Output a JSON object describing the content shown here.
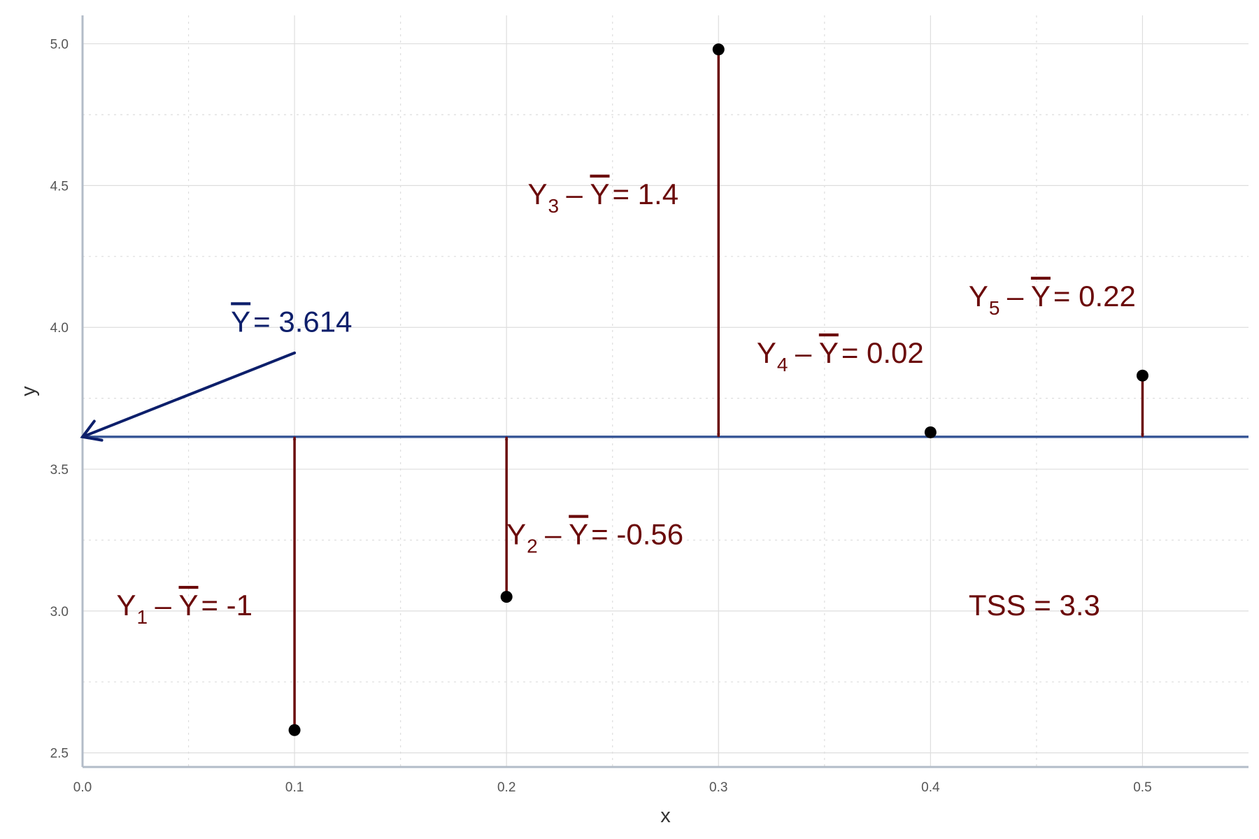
{
  "chart_data": {
    "type": "scatter",
    "title": "",
    "xlabel": "x",
    "ylabel": "y",
    "xlim": [
      0,
      0.55
    ],
    "ylim": [
      2.45,
      5.1
    ],
    "x_ticks": [
      "0.0",
      "0.1",
      "0.2",
      "0.3",
      "0.4",
      "0.5"
    ],
    "y_ticks": [
      "2.5",
      "3.0",
      "3.5",
      "4.0",
      "4.5",
      "5.0"
    ],
    "grid": true,
    "points": [
      {
        "x": 0.1,
        "y": 2.58
      },
      {
        "x": 0.2,
        "y": 3.05
      },
      {
        "x": 0.3,
        "y": 4.98
      },
      {
        "x": 0.4,
        "y": 3.63
      },
      {
        "x": 0.5,
        "y": 3.83
      }
    ],
    "mean_line": {
      "y": 3.614,
      "color": "#3b5998"
    },
    "mean_label": {
      "text": "= 3.614",
      "letter": "Y",
      "color": "#0d1f6b",
      "x": 0.07,
      "y": 3.985
    },
    "mean_arrow": {
      "from": [
        0.1,
        3.91
      ],
      "to": [
        0.0,
        3.614
      ]
    },
    "deviation_color": "#6b0a0a",
    "deviations": [
      {
        "from": [
          0.1,
          2.58
        ],
        "to": [
          0.1,
          3.614
        ]
      },
      {
        "from": [
          0.2,
          3.05
        ],
        "to": [
          0.2,
          3.614
        ]
      },
      {
        "from": [
          0.3,
          4.98
        ],
        "to": [
          0.3,
          3.614
        ]
      },
      {
        "from": [
          0.4,
          3.63
        ],
        "to": [
          0.4,
          3.614
        ]
      },
      {
        "from": [
          0.5,
          3.83
        ],
        "to": [
          0.5,
          3.614
        ]
      }
    ],
    "annotations": [
      {
        "sub": "1",
        "value": "= -1",
        "x": 0.016,
        "y": 2.985
      },
      {
        "sub": "2",
        "value": "= -0.56",
        "x": 0.2,
        "y": 3.235
      },
      {
        "sub": "3",
        "value": "= 1.4",
        "x": 0.21,
        "y": 4.435
      },
      {
        "sub": "4",
        "value": "= 0.02",
        "x": 0.318,
        "y": 3.875
      },
      {
        "sub": "5",
        "value": "= 0.22",
        "x": 0.418,
        "y": 4.075
      }
    ],
    "annotation_letter": "Y",
    "annotation_minus": "–",
    "tss": {
      "text": "TSS = 3.3",
      "x": 0.418,
      "y": 2.985
    }
  }
}
